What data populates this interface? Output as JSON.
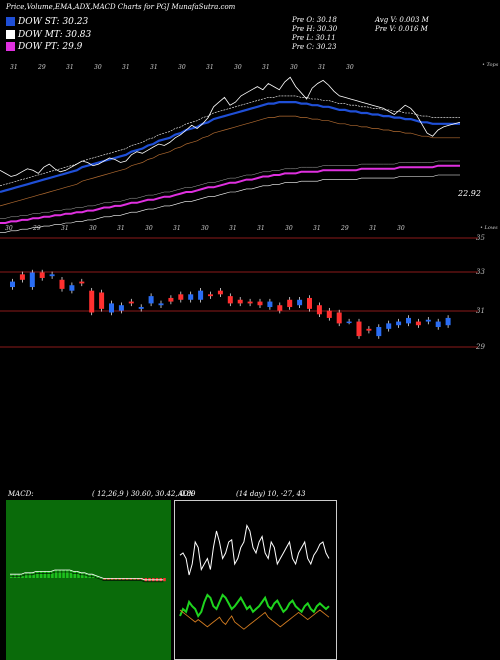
{
  "header": {
    "title": "Price,Volume,EMA,ADX,MACD Charts for PGJ MunafaSutra.com"
  },
  "legend": [
    {
      "label": "DOW ST: 30.23",
      "color": "#1f4fd6"
    },
    {
      "label": "DOW MT: 30.83",
      "color": "#ffffff"
    },
    {
      "label": "DOW PT: 29.9",
      "color": "#e030e0"
    }
  ],
  "stats": {
    "col1": [
      "Pre O: 30.18",
      "Pre H: 30.30",
      "Pre L: 30.11",
      "Pre C: 30.23"
    ],
    "col2": [
      "Avg V: 0.003 M",
      "Pre V: 0.016 M"
    ]
  },
  "price_panel": {
    "top_date_ticks": [
      "31",
      "29",
      "31",
      "30",
      "31",
      "31",
      "30",
      "31",
      "30",
      "31",
      "30",
      "31",
      "30"
    ],
    "bottom_date_ticks": [
      "30",
      "29",
      "31",
      "30",
      "31",
      "30",
      "31",
      "30",
      "31",
      "31",
      "30",
      "31",
      "29",
      "31",
      "30"
    ],
    "right_top_label": "• Tops",
    "right_bottom_label": "• Lows",
    "last_value_label": "22.92",
    "price_levels": [
      "35",
      "33",
      "31",
      "29"
    ]
  },
  "macd": {
    "title": "MACD:",
    "params": "( 12,26,9 ) 30.60, 30.42, 0.89"
  },
  "adx": {
    "title": "ADX",
    "params": "(14 day) 10, -27, 43"
  },
  "chart_data": [
    {
      "type": "line",
      "title": "Price, EMA",
      "series": [
        {
          "name": "close",
          "values": [
            74,
            72,
            70,
            71,
            73,
            75,
            74,
            72,
            76,
            78,
            75,
            73,
            74,
            76,
            78,
            80,
            79,
            77,
            78,
            80,
            82,
            81,
            79,
            80,
            84,
            86,
            85,
            87,
            89,
            91,
            90,
            92,
            95,
            97,
            100,
            103,
            101,
            104,
            108,
            115,
            118,
            121,
            116,
            118,
            122,
            124,
            126,
            128,
            126,
            130,
            128,
            126,
            131,
            134,
            128,
            124,
            120,
            127,
            130,
            132,
            129,
            125,
            122,
            121,
            120,
            119,
            118,
            117,
            116,
            115,
            114,
            112,
            110,
            113,
            116,
            114,
            110,
            104,
            98,
            96,
            100,
            102,
            103,
            104,
            105
          ]
        },
        {
          "name": "EMA fast",
          "values": [
            60,
            61,
            62,
            63,
            64,
            65,
            66,
            67,
            68,
            69,
            70,
            71,
            72,
            73,
            74,
            76,
            77,
            78,
            79,
            80,
            81,
            82,
            83,
            84,
            86,
            87,
            88,
            90,
            91,
            93,
            94,
            95,
            97,
            98,
            100,
            101,
            102,
            104,
            105,
            107,
            108,
            109,
            110,
            111,
            112,
            113,
            114,
            115,
            116,
            117,
            117,
            118,
            118,
            118,
            118,
            117,
            117,
            116,
            116,
            115,
            115,
            114,
            113,
            113,
            112,
            112,
            111,
            111,
            110,
            110,
            109,
            109,
            108,
            108,
            107,
            107,
            106,
            105,
            105,
            104,
            104,
            104,
            104,
            104,
            104
          ]
        },
        {
          "name": "EMA slow",
          "values": [
            40,
            40,
            41,
            41,
            42,
            42,
            43,
            43,
            44,
            44,
            45,
            45,
            46,
            46,
            47,
            47,
            48,
            48,
            49,
            50,
            50,
            51,
            51,
            52,
            53,
            53,
            54,
            55,
            55,
            56,
            57,
            57,
            58,
            59,
            60,
            60,
            61,
            62,
            63,
            63,
            64,
            65,
            66,
            66,
            67,
            68,
            68,
            69,
            70,
            70,
            71,
            71,
            72,
            72,
            72,
            73,
            73,
            73,
            73,
            74,
            74,
            74,
            74,
            74,
            74,
            74,
            75,
            75,
            75,
            75,
            75,
            75,
            75,
            76,
            76,
            76,
            76,
            76,
            76,
            76,
            77,
            77,
            77,
            77,
            77
          ]
        }
      ]
    },
    {
      "type": "bar",
      "title": "Price candles",
      "open": [
        32.3,
        33.0,
        32.3,
        33.1,
        32.9,
        32.7,
        32.1,
        32.6,
        32.1,
        32.0,
        30.9,
        31.0,
        31.5,
        31.1,
        31.4,
        31.3,
        31.7,
        31.9,
        31.6,
        31.6,
        31.9,
        32.1,
        31.8,
        31.6,
        31.5,
        31.5,
        31.2,
        31.3,
        31.6,
        31.3,
        31.7,
        31.3,
        31.0,
        30.9,
        30.4,
        30.4,
        30.0,
        29.6,
        30.0,
        30.2,
        30.3,
        30.4,
        30.4,
        30.1,
        30.2
      ],
      "close": [
        32.6,
        32.7,
        33.1,
        32.8,
        33.0,
        32.2,
        32.4,
        32.5,
        30.9,
        31.1,
        31.4,
        31.3,
        31.4,
        31.2,
        31.8,
        31.4,
        31.5,
        31.6,
        31.9,
        32.1,
        31.8,
        31.9,
        31.4,
        31.4,
        31.4,
        31.3,
        31.5,
        31.0,
        31.2,
        31.6,
        31.1,
        30.8,
        30.6,
        30.3,
        30.4,
        29.6,
        29.9,
        30.1,
        30.3,
        30.4,
        30.6,
        30.2,
        30.5,
        30.4,
        30.6
      ]
    },
    {
      "type": "area",
      "title": "MACD",
      "values": [
        2,
        2,
        2,
        2,
        3,
        3,
        3,
        4,
        4,
        4,
        4,
        4,
        5,
        5,
        5,
        5,
        5,
        4,
        4,
        3,
        3,
        2,
        2,
        1,
        0,
        -1,
        -1,
        -1,
        -1,
        -1,
        -1,
        -1,
        -1,
        -1,
        -1,
        -1,
        -2,
        -2,
        -2,
        -2,
        -2,
        -2
      ]
    },
    {
      "type": "line",
      "title": "ADX",
      "series": [
        {
          "name": "line1",
          "values": [
            48,
            50,
            45,
            30,
            40,
            60,
            55,
            35,
            40,
            45,
            35,
            55,
            70,
            60,
            45,
            50,
            60,
            62,
            40,
            45,
            55,
            60,
            75,
            70,
            55,
            50,
            60,
            65,
            50,
            45,
            60,
            55,
            40,
            45,
            50,
            55,
            60,
            45,
            40,
            50,
            55,
            60,
            45,
            40,
            48,
            52,
            58,
            60,
            50,
            45
          ]
        },
        {
          "name": "line2",
          "values": [
            15,
            20,
            18,
            25,
            22,
            20,
            15,
            18,
            25,
            30,
            28,
            22,
            20,
            25,
            30,
            28,
            24,
            20,
            22,
            25,
            28,
            24,
            20,
            22,
            18,
            20,
            22,
            25,
            28,
            22,
            20,
            24,
            26,
            22,
            18,
            20,
            24,
            26,
            22,
            20,
            18,
            22,
            24,
            20,
            18,
            22,
            24,
            22,
            20,
            22
          ]
        },
        {
          "name": "line3",
          "values": [
            30,
            28,
            26,
            24,
            22,
            20,
            22,
            20,
            18,
            16,
            18,
            20,
            22,
            24,
            20,
            18,
            22,
            25,
            20,
            18,
            16,
            14,
            16,
            18,
            20,
            22,
            24,
            26,
            28,
            24,
            22,
            20,
            18,
            16,
            18,
            20,
            22,
            24,
            26,
            28,
            26,
            24,
            22,
            24,
            26,
            28,
            30,
            28,
            26,
            24
          ]
        }
      ]
    }
  ]
}
